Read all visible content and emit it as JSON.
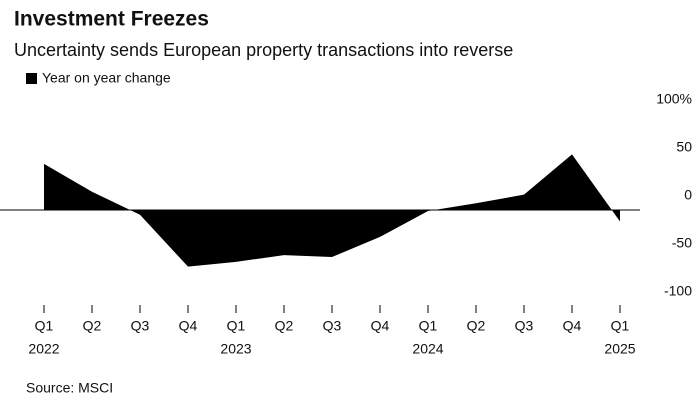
{
  "chart_data": {
    "type": "area",
    "title": "Investment Freezes",
    "subtitle": "Uncertainty sends European property transactions into reverse",
    "source": "Source: MSCI",
    "series": [
      {
        "name": "Year on year change",
        "color": "#000000",
        "values": [
          48,
          19,
          -5,
          -59,
          -54,
          -47,
          -49,
          -28,
          -1,
          7,
          16,
          58,
          -12
        ]
      }
    ],
    "categories": [
      "Q1",
      "Q2",
      "Q3",
      "Q4",
      "Q1",
      "Q2",
      "Q3",
      "Q4",
      "Q1",
      "Q2",
      "Q3",
      "Q4",
      "Q1"
    ],
    "years": [
      "2022",
      null,
      null,
      null,
      "2023",
      null,
      null,
      null,
      "2024",
      null,
      null,
      null,
      "2025"
    ],
    "ylim": [
      -110,
      110
    ],
    "yticks": [
      {
        "value": 100,
        "label": "100%"
      },
      50,
      0,
      -50,
      -100
    ]
  }
}
